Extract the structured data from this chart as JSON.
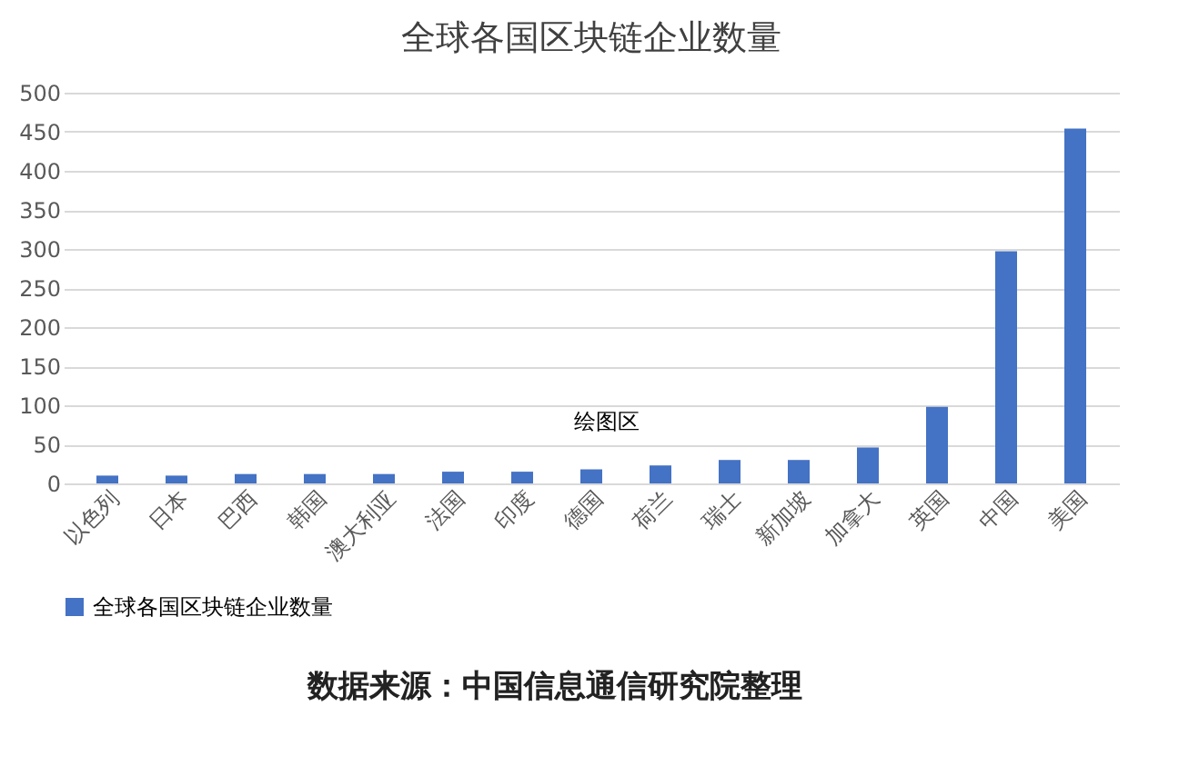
{
  "chart_data": {
    "type": "bar",
    "title": "全球各国区块链企业数量",
    "categories": [
      "以色列",
      "日本",
      "巴西",
      "韩国",
      "澳大利亚",
      "法国",
      "印度",
      "德国",
      "荷兰",
      "瑞士",
      "新加坡",
      "加拿大",
      "英国",
      "中国",
      "美国"
    ],
    "series": [
      {
        "name": "全球各国区块链企业数量",
        "color": "#4472c4",
        "values": [
          10,
          10,
          12,
          12,
          12,
          15,
          15,
          18,
          23,
          30,
          30,
          46,
          98,
          297,
          454
        ]
      }
    ],
    "ylim": [
      0,
      500
    ],
    "yticks": [
      0,
      50,
      100,
      150,
      200,
      250,
      300,
      350,
      400,
      450,
      500
    ],
    "grid": "y",
    "legend": "bottom",
    "annotations": [
      "绘图区",
      "数据来源：中国信息通信研究院整理"
    ]
  }
}
